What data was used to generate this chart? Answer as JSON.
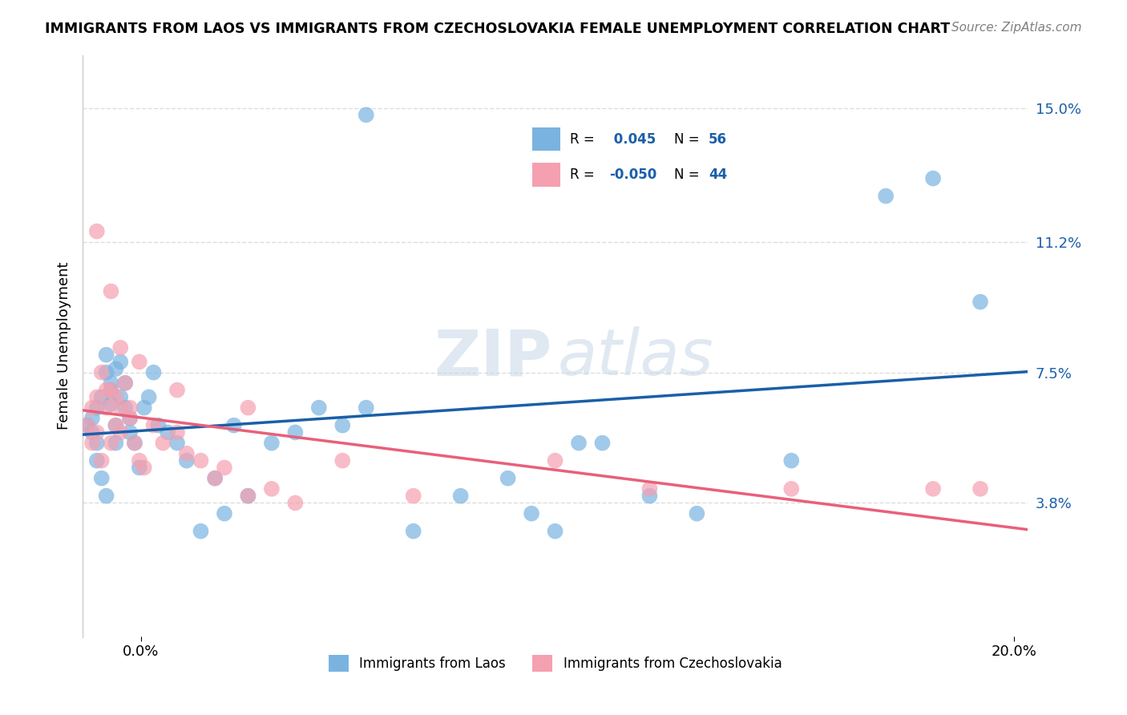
{
  "title": "IMMIGRANTS FROM LAOS VS IMMIGRANTS FROM CZECHOSLOVAKIA FEMALE UNEMPLOYMENT CORRELATION CHART",
  "source": "Source: ZipAtlas.com",
  "ylabel": "Female Unemployment",
  "xlim": [
    0.0,
    0.2
  ],
  "ylim": [
    0.0,
    0.165
  ],
  "right_yticks": [
    0.038,
    0.075,
    0.112,
    0.15
  ],
  "right_yticklabels": [
    "3.8%",
    "7.5%",
    "11.2%",
    "15.0%"
  ],
  "legend_labels": [
    "Immigrants from Laos",
    "Immigrants from Czechoslovakia"
  ],
  "legend_r": [
    0.045,
    -0.05
  ],
  "legend_n": [
    56,
    44
  ],
  "laos_color": "#7ab3e0",
  "czech_color": "#f4a0b0",
  "laos_trend_color": "#1a5fa8",
  "czech_trend_color": "#e8607a",
  "background_color": "#ffffff",
  "grid_color": "#dddddd",
  "laos_x": [
    0.001,
    0.002,
    0.002,
    0.003,
    0.003,
    0.003,
    0.004,
    0.004,
    0.005,
    0.005,
    0.005,
    0.006,
    0.006,
    0.006,
    0.007,
    0.007,
    0.007,
    0.008,
    0.008,
    0.009,
    0.009,
    0.01,
    0.01,
    0.011,
    0.012,
    0.013,
    0.014,
    0.015,
    0.016,
    0.018,
    0.02,
    0.022,
    0.025,
    0.028,
    0.03,
    0.032,
    0.035,
    0.04,
    0.045,
    0.05,
    0.055,
    0.06,
    0.07,
    0.08,
    0.09,
    0.095,
    0.1,
    0.105,
    0.11,
    0.12,
    0.13,
    0.15,
    0.17,
    0.18,
    0.19,
    0.06
  ],
  "laos_y": [
    0.06,
    0.062,
    0.058,
    0.055,
    0.065,
    0.05,
    0.045,
    0.068,
    0.04,
    0.075,
    0.08,
    0.07,
    0.072,
    0.066,
    0.06,
    0.055,
    0.076,
    0.078,
    0.068,
    0.065,
    0.072,
    0.058,
    0.062,
    0.055,
    0.048,
    0.065,
    0.068,
    0.075,
    0.06,
    0.058,
    0.055,
    0.05,
    0.03,
    0.045,
    0.035,
    0.06,
    0.04,
    0.055,
    0.058,
    0.065,
    0.06,
    0.065,
    0.03,
    0.04,
    0.045,
    0.035,
    0.03,
    0.055,
    0.055,
    0.04,
    0.035,
    0.05,
    0.125,
    0.13,
    0.095,
    0.148
  ],
  "czech_x": [
    0.001,
    0.002,
    0.002,
    0.003,
    0.003,
    0.004,
    0.004,
    0.005,
    0.005,
    0.006,
    0.006,
    0.007,
    0.007,
    0.008,
    0.008,
    0.009,
    0.01,
    0.01,
    0.011,
    0.012,
    0.013,
    0.015,
    0.017,
    0.02,
    0.022,
    0.025,
    0.028,
    0.03,
    0.035,
    0.04,
    0.045,
    0.055,
    0.07,
    0.1,
    0.12,
    0.15,
    0.18,
    0.003,
    0.006,
    0.008,
    0.012,
    0.02,
    0.035,
    0.19
  ],
  "czech_y": [
    0.06,
    0.065,
    0.055,
    0.058,
    0.068,
    0.05,
    0.075,
    0.07,
    0.065,
    0.055,
    0.07,
    0.068,
    0.06,
    0.065,
    0.058,
    0.072,
    0.065,
    0.062,
    0.055,
    0.05,
    0.048,
    0.06,
    0.055,
    0.058,
    0.052,
    0.05,
    0.045,
    0.048,
    0.04,
    0.042,
    0.038,
    0.05,
    0.04,
    0.05,
    0.042,
    0.042,
    0.042,
    0.115,
    0.098,
    0.082,
    0.078,
    0.07,
    0.065,
    0.042
  ]
}
